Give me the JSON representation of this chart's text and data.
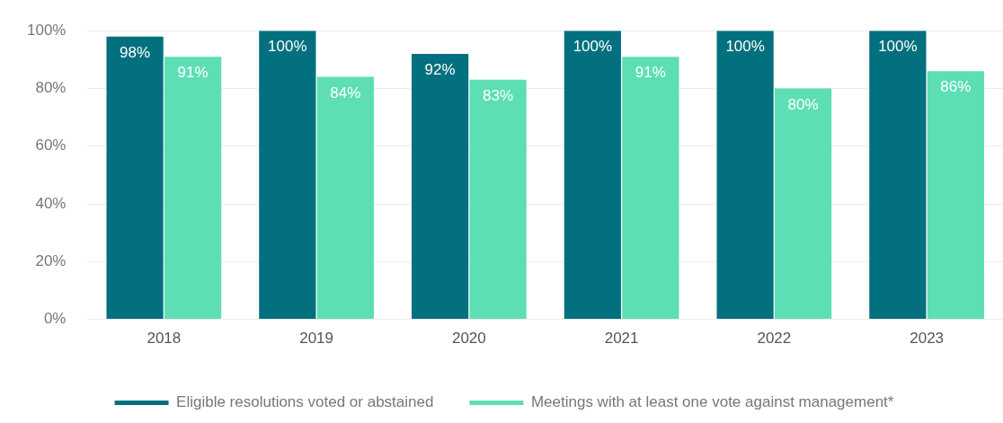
{
  "chart_data": {
    "type": "bar",
    "categories": [
      "2018",
      "2019",
      "2020",
      "2021",
      "2022",
      "2023"
    ],
    "series": [
      {
        "name": "Eligible resolutions voted or abstained",
        "color": "#02707e",
        "values": [
          98,
          100,
          92,
          100,
          100,
          100
        ],
        "value_labels": [
          "98%",
          "100%",
          "92%",
          "100%",
          "100%",
          "100%"
        ]
      },
      {
        "name": "Meetings with at least one vote against management*",
        "color": "#5ddeb5",
        "values": [
          91,
          84,
          83,
          91,
          80,
          86
        ],
        "value_labels": [
          "91%",
          "84%",
          "83%",
          "91%",
          "80%",
          "86%"
        ]
      }
    ],
    "ylim": [
      0,
      100
    ],
    "yticks": [
      {
        "value": 0,
        "label": "0%"
      },
      {
        "value": 20,
        "label": "20%"
      },
      {
        "value": 40,
        "label": "40%"
      },
      {
        "value": 60,
        "label": "60%"
      },
      {
        "value": 80,
        "label": "80%"
      },
      {
        "value": 100,
        "label": "100%"
      }
    ],
    "grid": "y",
    "legend": "bottom"
  }
}
